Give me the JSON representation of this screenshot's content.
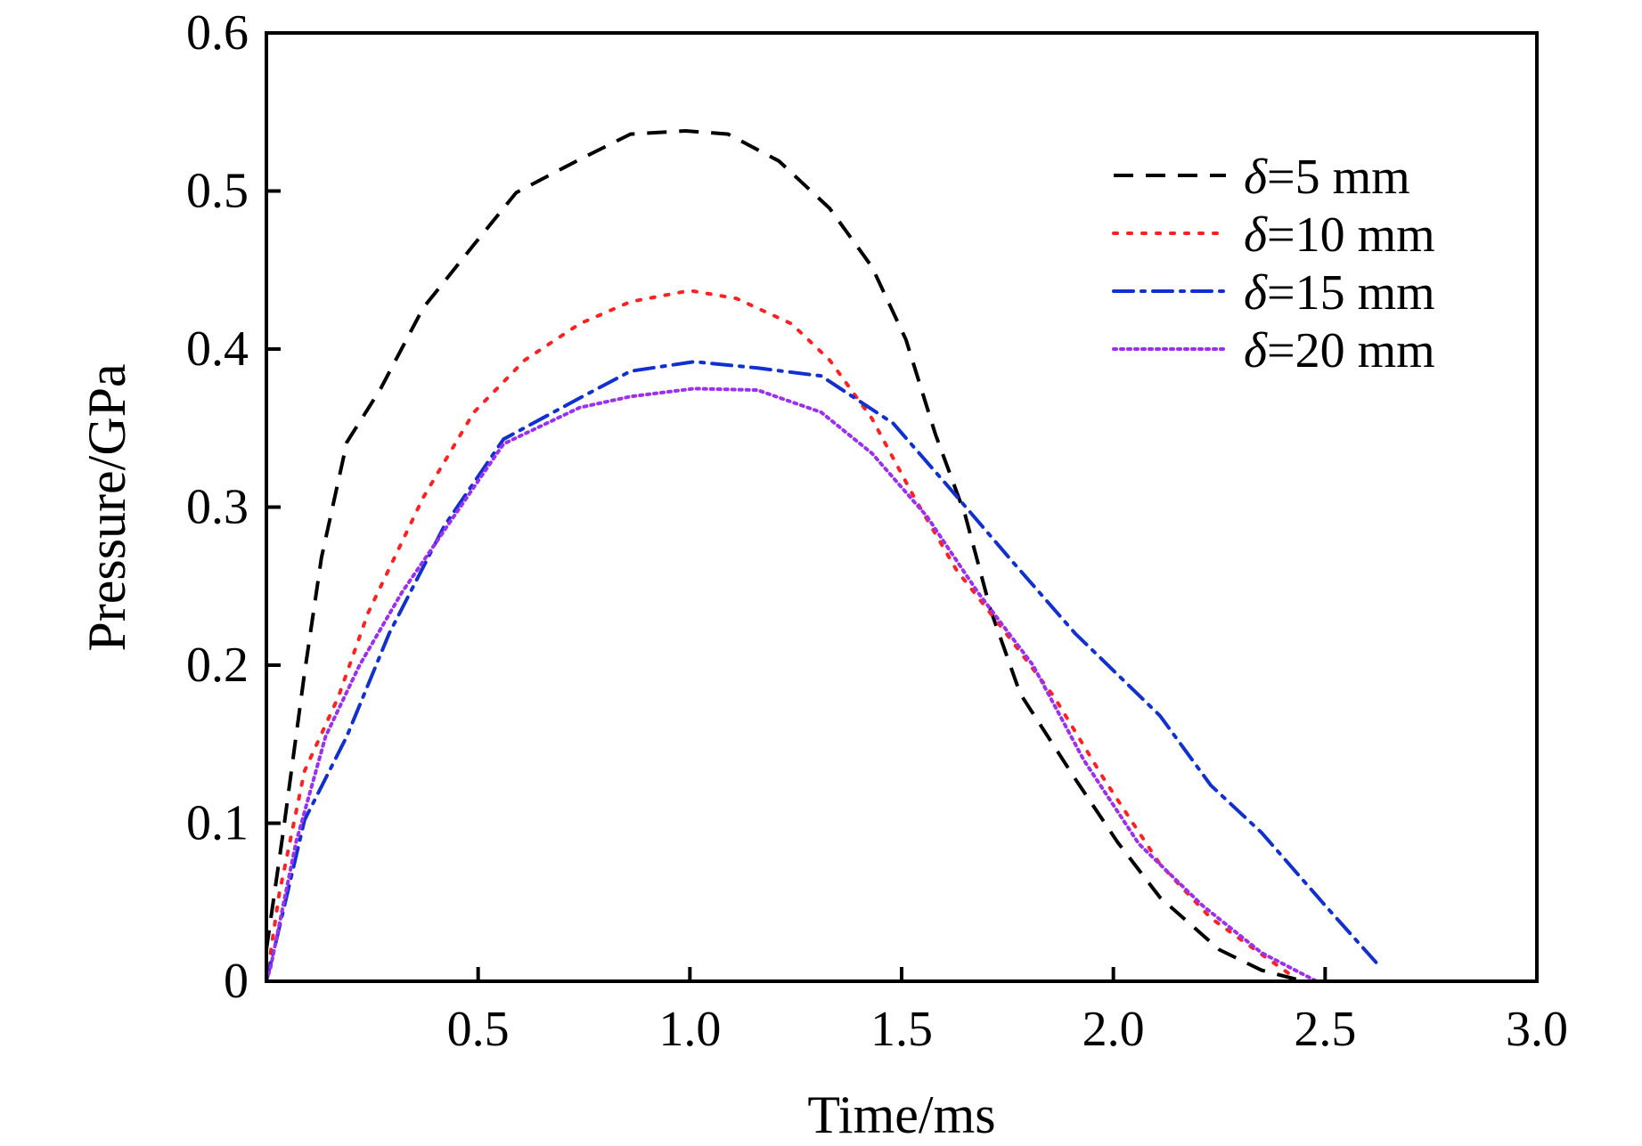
{
  "chart_data": {
    "type": "line",
    "xlabel": "Time/ms",
    "ylabel": "Pressure/GPa",
    "xlim": [
      0,
      3.0
    ],
    "ylim": [
      0,
      0.6
    ],
    "xticks": [
      0.5,
      1.0,
      1.5,
      2.0,
      2.5,
      3.0
    ],
    "xtick_labels": [
      "0.5",
      "1.0",
      "1.5",
      "2.0",
      "2.5",
      "3.0"
    ],
    "yticks": [
      0,
      0.1,
      0.2,
      0.3,
      0.4,
      0.5,
      0.6
    ],
    "ytick_labels": [
      "0",
      "0.1",
      "0.2",
      "0.3",
      "0.4",
      "0.5",
      "0.6"
    ],
    "grid": false,
    "legend_position": "top-right",
    "series": [
      {
        "name": "δ=5 mm",
        "name_symbol": "δ",
        "name_rest": "=5 mm",
        "color": "#000000",
        "style": "dashed",
        "x": [
          0,
          0.04,
          0.09,
          0.13,
          0.19,
          0.27,
          0.37,
          0.49,
          0.59,
          0.74,
          0.86,
          0.99,
          1.09,
          1.21,
          1.33,
          1.43,
          1.51,
          1.58,
          1.65,
          1.71,
          1.78,
          1.91,
          2.01,
          2.11,
          2.25,
          2.35,
          2.45
        ],
        "y": [
          0.02,
          0.095,
          0.195,
          0.268,
          0.341,
          0.375,
          0.426,
          0.466,
          0.499,
          0.52,
          0.536,
          0.538,
          0.536,
          0.519,
          0.489,
          0.452,
          0.406,
          0.346,
          0.295,
          0.235,
          0.182,
          0.128,
          0.088,
          0.053,
          0.02,
          0.007,
          0
        ]
      },
      {
        "name": "δ=10 mm",
        "name_symbol": "δ",
        "name_rest": "=10 mm",
        "color": "#ff2020",
        "style": "dotted",
        "x": [
          0,
          0.03,
          0.09,
          0.17,
          0.24,
          0.37,
          0.49,
          0.61,
          0.74,
          0.86,
          1.0,
          1.11,
          1.24,
          1.33,
          1.43,
          1.53,
          1.63,
          1.73,
          1.86,
          1.98,
          2.11,
          2.23,
          2.35,
          2.43
        ],
        "y": [
          0,
          0.055,
          0.133,
          0.18,
          0.233,
          0.306,
          0.36,
          0.393,
          0.416,
          0.43,
          0.437,
          0.432,
          0.416,
          0.393,
          0.356,
          0.306,
          0.26,
          0.226,
          0.18,
          0.127,
          0.074,
          0.04,
          0.017,
          0.002
        ]
      },
      {
        "name": "δ=15 mm",
        "name_symbol": "δ",
        "name_rest": "=15 mm",
        "color": "#1030d0",
        "style": "dashdot",
        "x": [
          0,
          0.02,
          0.09,
          0.19,
          0.29,
          0.42,
          0.56,
          0.74,
          0.86,
          1.01,
          1.16,
          1.31,
          1.48,
          1.61,
          1.76,
          1.91,
          2.11,
          2.23,
          2.35,
          2.5,
          2.62
        ],
        "y": [
          0,
          0.022,
          0.102,
          0.155,
          0.22,
          0.288,
          0.343,
          0.369,
          0.386,
          0.392,
          0.388,
          0.383,
          0.353,
          0.313,
          0.266,
          0.22,
          0.168,
          0.124,
          0.094,
          0.048,
          0.012
        ]
      },
      {
        "name": "δ=20 mm",
        "name_symbol": "δ",
        "name_rest": "=20 mm",
        "color": "#9b30f0",
        "style": "dense-dotted",
        "x": [
          0,
          0.01,
          0.07,
          0.14,
          0.22,
          0.32,
          0.44,
          0.56,
          0.74,
          0.86,
          1.01,
          1.16,
          1.31,
          1.43,
          1.56,
          1.68,
          1.81,
          1.93,
          2.06,
          2.21,
          2.35,
          2.48
        ],
        "y": [
          0,
          0.009,
          0.088,
          0.155,
          0.2,
          0.246,
          0.293,
          0.34,
          0.363,
          0.37,
          0.375,
          0.374,
          0.36,
          0.334,
          0.294,
          0.246,
          0.2,
          0.14,
          0.087,
          0.048,
          0.018,
          0
        ]
      }
    ]
  }
}
